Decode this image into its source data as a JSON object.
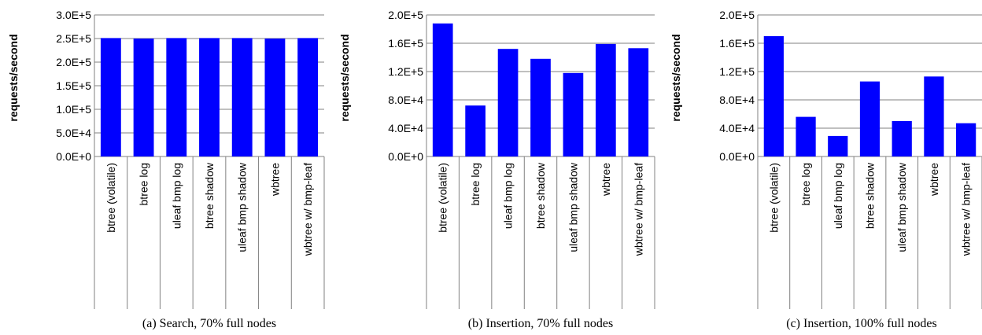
{
  "colors": {
    "bar": "#0000ff",
    "axis": "#808080",
    "text": "#000000"
  },
  "chart_data": [
    {
      "type": "bar",
      "caption": "(a) Search, 70% full nodes",
      "ylabel": "requests/second",
      "ylim": [
        0,
        300000
      ],
      "yticks": [
        "0.0E+0",
        "5.0E+4",
        "1.0E+5",
        "1.5E+5",
        "2.0E+5",
        "2.5E+5",
        "3.0E+5"
      ],
      "categories": [
        "btree (volatile)",
        "btree log",
        "uleaf bmp log",
        "btree shadow",
        "uleaf bmp shadow",
        "wbtree",
        "wbtree w/ bmp-leaf"
      ],
      "values": [
        251000,
        250000,
        251000,
        251000,
        251000,
        250000,
        251000
      ],
      "grid": true,
      "legend": "none"
    },
    {
      "type": "bar",
      "caption": "(b) Insertion, 70% full nodes",
      "ylabel": "requests/second",
      "ylim": [
        0,
        200000
      ],
      "yticks": [
        "0.0E+0",
        "4.0E+4",
        "8.0E+4",
        "1.2E+5",
        "1.6E+5",
        "2.0E+5"
      ],
      "categories": [
        "btree (volatile)",
        "btree log",
        "uleaf bmp log",
        "btree shadow",
        "uleaf bmp shadow",
        "wbtree",
        "wbtree w/ bmp-leaf"
      ],
      "values": [
        188000,
        72000,
        152000,
        138000,
        118000,
        159000,
        153000
      ],
      "grid": true,
      "legend": "none"
    },
    {
      "type": "bar",
      "caption": "(c) Insertion, 100% full nodes",
      "ylabel": "requests/second",
      "ylim": [
        0,
        200000
      ],
      "yticks": [
        "0.0E+0",
        "4.0E+4",
        "8.0E+4",
        "1.2E+5",
        "1.6E+5",
        "2.0E+5"
      ],
      "categories": [
        "btree (volatile)",
        "btree log",
        "uleaf bmp log",
        "btree shadow",
        "uleaf bmp shadow",
        "wbtree",
        "wbtree w/ bmp-leaf"
      ],
      "values": [
        170000,
        56000,
        29000,
        106000,
        50000,
        113000,
        47000
      ],
      "grid": true,
      "legend": "none"
    }
  ]
}
